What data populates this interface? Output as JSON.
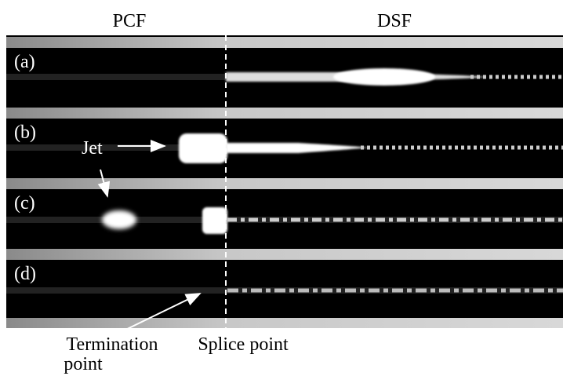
{
  "header": {
    "left": "PCF",
    "right": "DSF"
  },
  "panels": [
    {
      "label": "(a)"
    },
    {
      "label": "(b)"
    },
    {
      "label": "(c)"
    },
    {
      "label": "(d)"
    }
  ],
  "annotations": {
    "jet": "Jet",
    "termination": [
      "Termination",
      "point"
    ],
    "splice": "Splice point"
  }
}
